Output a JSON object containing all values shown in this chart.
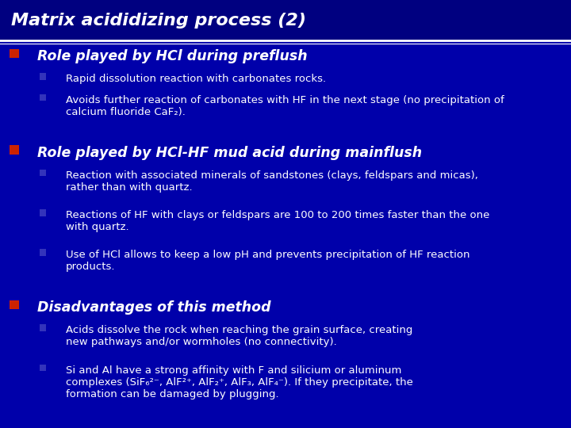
{
  "title": "Matrix acididizing process (2)",
  "background_color": "#0000AA",
  "title_bg_color": "#000080",
  "title_color": "#FFFFFF",
  "text_color": "#FFFFFF",
  "bullet_color_main": "#CC2200",
  "bullet_color_sub": "#3333BB",
  "sections": [
    {
      "heading": "Role played by HCl during preflush",
      "bullets": [
        "Rapid dissolution reaction with carbonates rocks.",
        "Avoids further reaction of carbonates with HF in the next stage (no precipitation of\ncalcium fluoride CaF₂)."
      ]
    },
    {
      "heading": "Role played by HCl-HF mud acid during mainflush",
      "bullets": [
        "Reaction with associated minerals of sandstones (clays, feldspars and micas),\nrather than with quartz.",
        "Reactions of HF with clays or feldspars are 100 to 200 times faster than the one\nwith quartz.",
        "Use of HCl allows to keep a low pH and prevents precipitation of HF reaction\nproducts."
      ]
    },
    {
      "heading": "Disadvantages of this method",
      "bullets": [
        "Acids dissolve the rock when reaching the grain surface, creating\nnew pathways and/or wormholes (no connectivity).",
        "Si and Al have a strong affinity with F and silicium or aluminum\ncomplexes (SiF₆²⁻, AlF²⁺, AlF₂⁺, AlF₃, AlF₄⁻). If they precipitate, the\nformation can be damaged by plugging."
      ]
    }
  ],
  "figsize": [
    7.2,
    5.4
  ],
  "dpi": 100
}
